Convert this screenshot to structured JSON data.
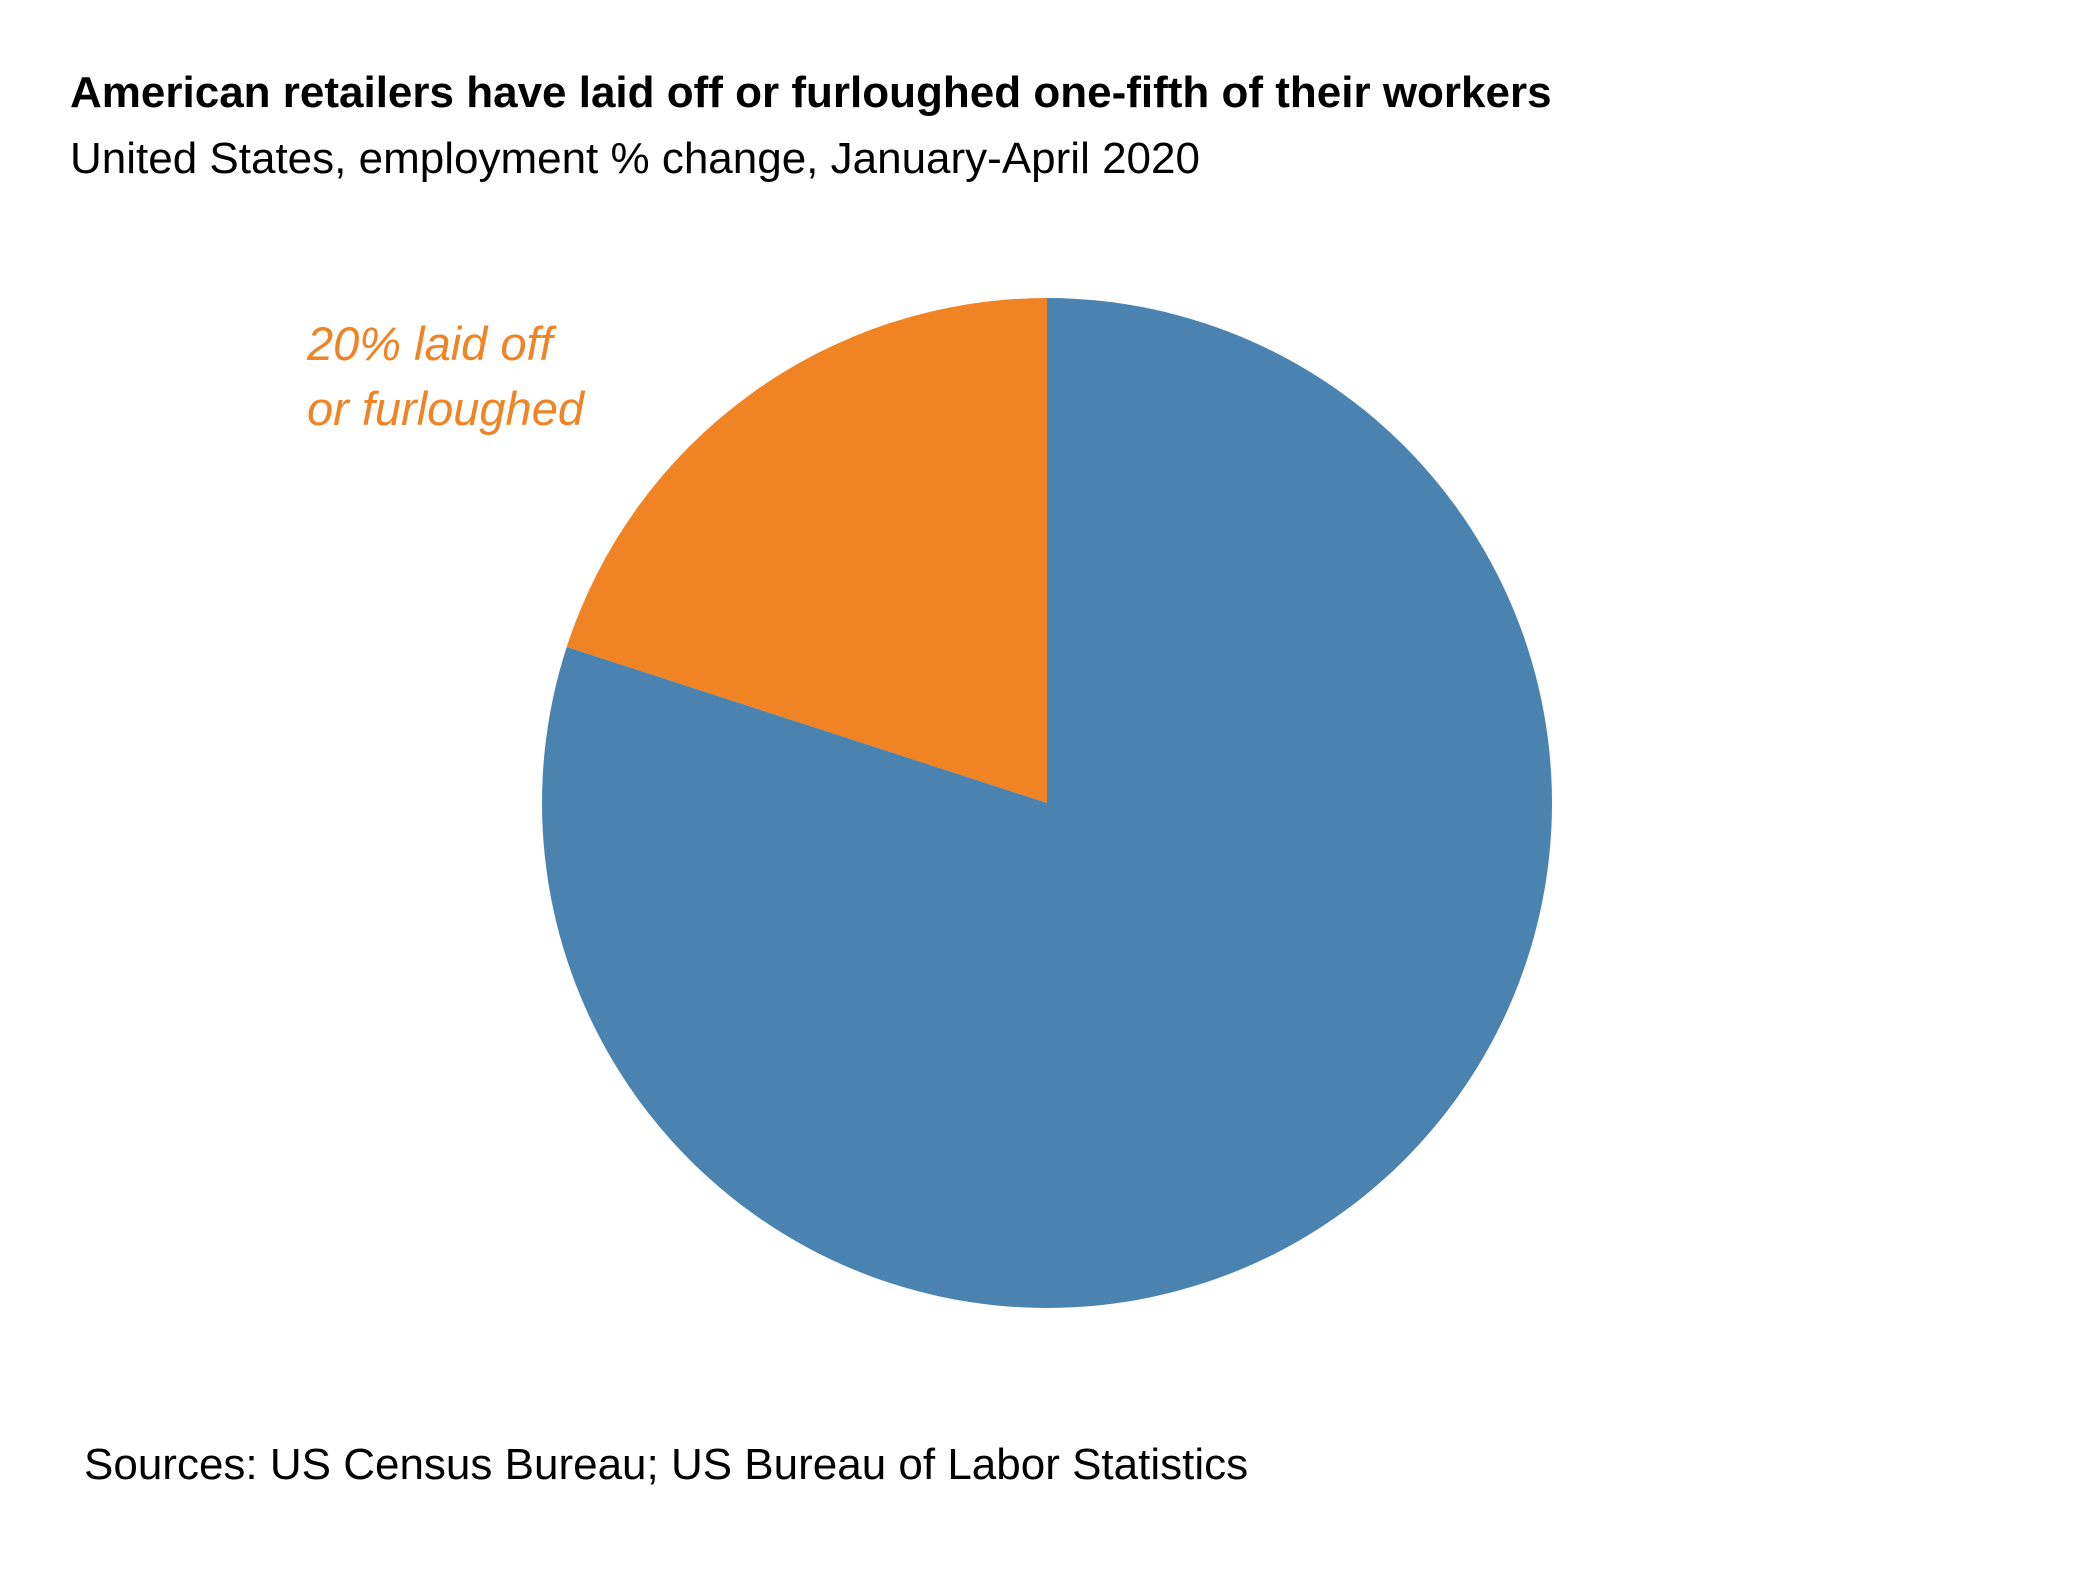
{
  "chart_data": {
    "type": "pie",
    "title": "American retailers have laid off or furloughed one-fifth of their workers",
    "subtitle": "United States, employment % change, January-April 2020",
    "slices": [
      {
        "value": 20,
        "color": "#f08323",
        "label_lines": [
          "20% laid off",
          "or furloughed"
        ]
      },
      {
        "value": 80,
        "color": "#4a82b0",
        "label_lines": []
      }
    ],
    "legend": "none",
    "source": "Sources: US Census Bureau; US Bureau of Labor Statistics"
  }
}
